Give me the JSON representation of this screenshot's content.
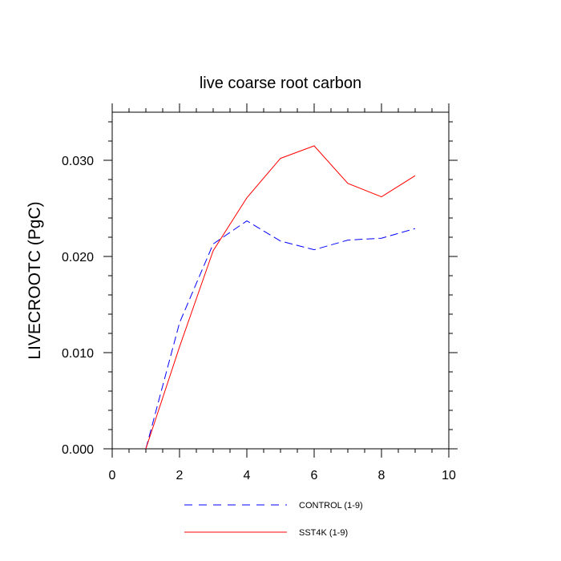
{
  "chart_data": {
    "type": "line",
    "title": "live coarse root carbon",
    "xlabel": "",
    "ylabel": "LIVECROOTC  (PgC)",
    "xlim": [
      0,
      10
    ],
    "ylim": [
      0,
      0.035
    ],
    "x_ticks": [
      "0",
      "2",
      "4",
      "6",
      "8",
      "10"
    ],
    "y_ticks": [
      "0.000",
      "0.010",
      "0.020",
      "0.030"
    ],
    "x": [
      1,
      2,
      3,
      4,
      5,
      6,
      7,
      8,
      9
    ],
    "series": [
      {
        "name": "CONTROL (1-9)",
        "color": "#0000ff",
        "style": "dashed",
        "values": [
          0.0,
          0.0131,
          0.0213,
          0.0237,
          0.0216,
          0.0207,
          0.0217,
          0.0219,
          0.0229
        ]
      },
      {
        "name": "SST4K (1-9)",
        "color": "#ff0000",
        "style": "solid",
        "values": [
          0.0,
          0.0106,
          0.0206,
          0.0261,
          0.0302,
          0.0315,
          0.0276,
          0.0262,
          0.0284
        ]
      }
    ],
    "legend_position": "bottom"
  }
}
